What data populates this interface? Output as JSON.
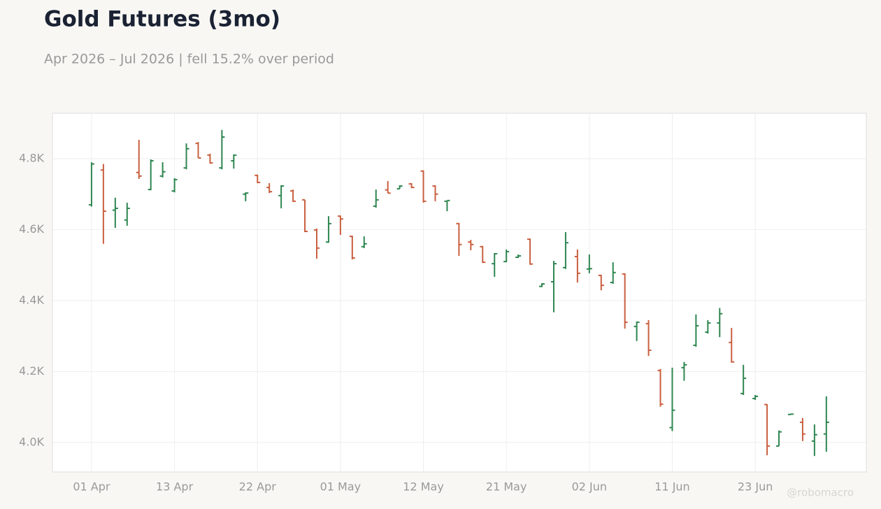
{
  "chart_data": {
    "type": "ohlc",
    "title": "Gold Futures (3mo)",
    "subtitle": "Apr 2026 – Jul 2026 | fell 15.2% over period",
    "watermark": "@robomacro",
    "up_color": "#2e8650",
    "down_color": "#c95f3f",
    "grid": true,
    "categories": [
      "01 Apr",
      null,
      null,
      null,
      null,
      null,
      null,
      "13 Apr",
      null,
      null,
      null,
      null,
      null,
      null,
      "22 Apr",
      null,
      null,
      null,
      null,
      null,
      null,
      "01 May",
      null,
      null,
      null,
      null,
      null,
      null,
      "12 May",
      null,
      null,
      null,
      null,
      null,
      null,
      "21 May",
      null,
      null,
      null,
      null,
      null,
      null,
      "02 Jun",
      null,
      null,
      null,
      null,
      null,
      null,
      "11 Jun",
      null,
      null,
      null,
      null,
      null,
      null,
      "23 Jun",
      null,
      null,
      null,
      null,
      null,
      null
    ],
    "open": [
      4670,
      4768,
      4655,
      4627,
      4761,
      4713,
      4751,
      4709,
      4774,
      4843,
      4810,
      4774,
      4794,
      4700,
      4753,
      4719,
      4696,
      4709,
      4684,
      4599,
      4565,
      4638,
      4581,
      4552,
      4666,
      4712,
      4715,
      4729,
      4765,
      4723,
      4680,
      4617,
      4565,
      4552,
      4504,
      4510,
      4522,
      4573,
      4440,
      4453,
      4493,
      4524,
      4489,
      4471,
      4451,
      4475,
      4327,
      4335,
      4203,
      4042,
      4211,
      4274,
      4311,
      4337,
      4282,
      4138,
      4124,
      4107,
      3990,
      4079,
      4057,
      4004,
      4024
    ],
    "high": [
      4790,
      4785,
      4690,
      4676,
      4853,
      4798,
      4790,
      4745,
      4843,
      4847,
      4814,
      4881,
      4812,
      4705,
      4755,
      4731,
      4725,
      4713,
      4684,
      4603,
      4638,
      4640,
      4583,
      4581,
      4713,
      4737,
      4725,
      4731,
      4767,
      4725,
      4682,
      4619,
      4571,
      4554,
      4534,
      4544,
      4530,
      4575,
      4449,
      4512,
      4593,
      4544,
      4530,
      4473,
      4508,
      4477,
      4341,
      4345,
      4207,
      4211,
      4227,
      4361,
      4345,
      4379,
      4323,
      4219,
      4134,
      4108,
      4034,
      4081,
      4069,
      4051,
      4130
    ],
    "low": [
      4665,
      4560,
      4605,
      4611,
      4743,
      4711,
      4747,
      4705,
      4770,
      4802,
      4786,
      4770,
      4772,
      4680,
      4731,
      4703,
      4660,
      4678,
      4593,
      4518,
      4563,
      4585,
      4516,
      4548,
      4662,
      4703,
      4715,
      4717,
      4676,
      4680,
      4652,
      4526,
      4542,
      4506,
      4467,
      4508,
      4520,
      4501,
      4438,
      4367,
      4489,
      4451,
      4477,
      4429,
      4447,
      4321,
      4286,
      4244,
      4101,
      4032,
      4174,
      4270,
      4307,
      4297,
      4225,
      4134,
      4120,
      3964,
      3990,
      4078,
      4004,
      3962,
      3974
    ],
    "close": [
      4785,
      4652,
      4660,
      4660,
      4751,
      4794,
      4763,
      4741,
      4828,
      4802,
      4788,
      4861,
      4810,
      4703,
      4733,
      4707,
      4723,
      4680,
      4595,
      4548,
      4617,
      4630,
      4520,
      4560,
      4684,
      4703,
      4723,
      4719,
      4680,
      4700,
      4682,
      4558,
      4558,
      4508,
      4532,
      4538,
      4526,
      4503,
      4447,
      4504,
      4563,
      4477,
      4490,
      4443,
      4479,
      4339,
      4339,
      4260,
      4108,
      4091,
      4219,
      4329,
      4337,
      4363,
      4227,
      4181,
      4130,
      3990,
      4030,
      4080,
      4024,
      4022,
      4057
    ],
    "ylim": [
      3917,
      4928
    ],
    "yticks": [
      {
        "value": 4000,
        "label": "4.0K"
      },
      {
        "value": 4200,
        "label": "4.2K"
      },
      {
        "value": 4400,
        "label": "4.4K"
      },
      {
        "value": 4600,
        "label": "4.6K"
      },
      {
        "value": 4800,
        "label": "4.8K"
      }
    ]
  }
}
